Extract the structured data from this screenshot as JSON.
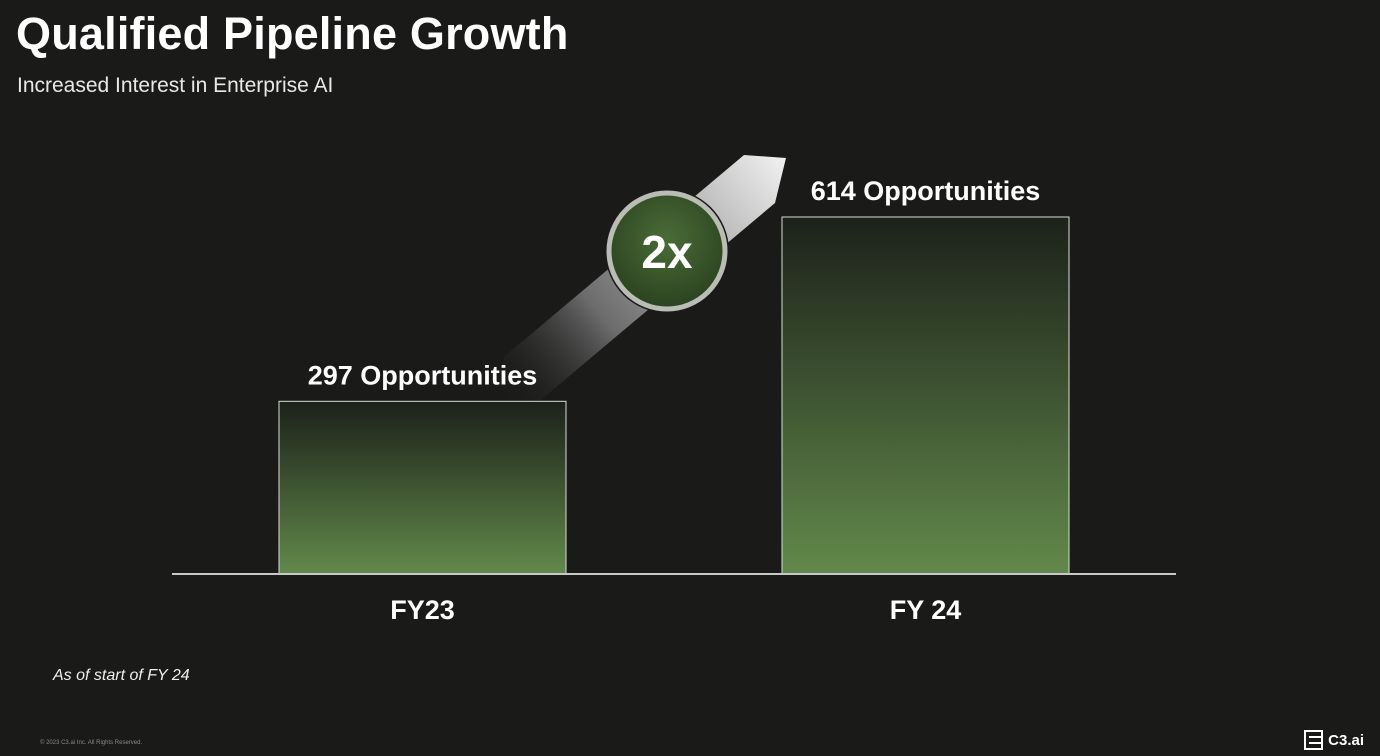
{
  "slide": {
    "title": "Qualified Pipeline Growth",
    "subtitle": "Increased Interest in Enterprise AI",
    "footnote": "As of start of FY 24",
    "copyright": "© 2023 C3.ai Inc. All Rights Reserved.",
    "brand": "C3.ai",
    "brand_icon": "c3-logo-icon"
  },
  "chart_data": {
    "type": "bar",
    "categories": [
      "FY23",
      "FY 24"
    ],
    "values": [
      297,
      614
    ],
    "data_labels": [
      "297 Opportunities",
      "614 Opportunities"
    ],
    "ylim": [
      0,
      614
    ],
    "grid": false,
    "title": "",
    "xlabel": "",
    "ylabel": "",
    "annotation": {
      "text": "2x",
      "type": "growth-arrow-badge"
    },
    "colors": {
      "bar_top": "#1c211a",
      "bar_bottom": "#62894b",
      "bar_border": "#d8ddd4",
      "badge_fill": "#3b5a2c",
      "badge_ring": "#b9bdb4",
      "axis": "#c8c8c8"
    }
  }
}
